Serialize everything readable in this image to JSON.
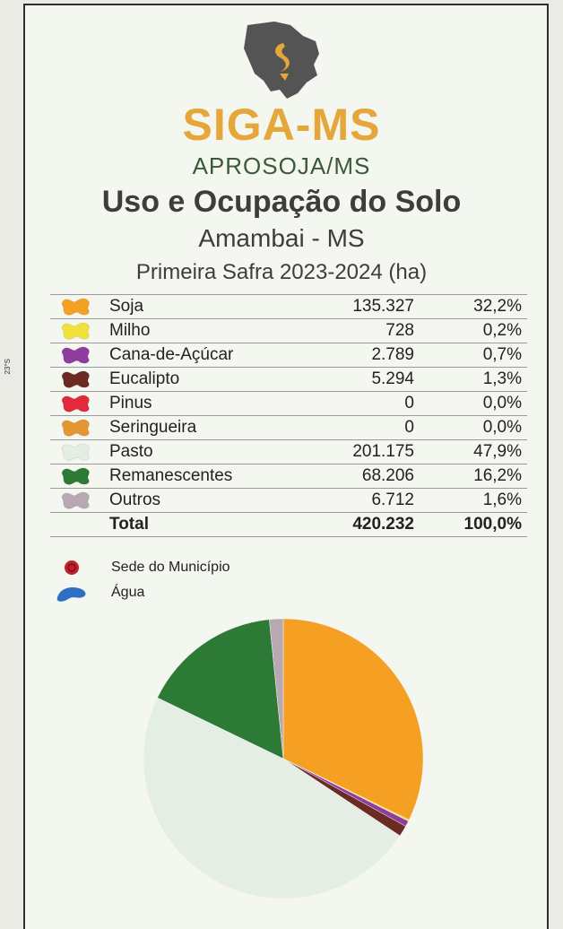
{
  "brand": {
    "name": "SIGA-MS",
    "sub": "APROSOJA/MS"
  },
  "header": {
    "title": "Uso e Ocupação do Solo",
    "location": "Amambai - MS",
    "subtitle": "Primeira Safra 2023-2024 (ha)"
  },
  "map": {
    "lat_tick": "23°S"
  },
  "legend_rows": [
    {
      "label": "Soja",
      "area": "135.327",
      "pct": "32,2%",
      "color": "#f5a023"
    },
    {
      "label": "Milho",
      "area": "728",
      "pct": "0,2%",
      "color": "#f0e23a"
    },
    {
      "label": "Cana-de-Açúcar",
      "area": "2.789",
      "pct": "0,7%",
      "color": "#8e3ca0"
    },
    {
      "label": "Eucalipto",
      "area": "5.294",
      "pct": "1,3%",
      "color": "#6b2a22"
    },
    {
      "label": "Pinus",
      "area": "0",
      "pct": "0,0%",
      "color": "#e22a3a"
    },
    {
      "label": "Seringueira",
      "area": "0",
      "pct": "0,0%",
      "color": "#e59532"
    },
    {
      "label": "Pasto",
      "area": "201.175",
      "pct": "47,9%",
      "color": "#e4eee4"
    },
    {
      "label": "Remanescentes",
      "area": "68.206",
      "pct": "16,2%",
      "color": "#2d7a36"
    },
    {
      "label": "Outros",
      "area": "6.712",
      "pct": "1,6%",
      "color": "#b7a8b2"
    }
  ],
  "total": {
    "label": "Total",
    "area": "420.232",
    "pct": "100,0%"
  },
  "extra_legend": [
    {
      "label": "Sede do Município",
      "icon": "red-circle-icon",
      "color": "#c0212d"
    },
    {
      "label": "Água",
      "icon": "water-blob-icon",
      "color": "#2e6fc2"
    }
  ],
  "chart_data": {
    "type": "pie",
    "unit": "ha",
    "title": "Uso e Ocupação do Solo",
    "subtitle": "Primeira Safra 2023-2024 (ha)",
    "slices": [
      {
        "label": "Soja",
        "value": 135327,
        "percent": 32.2,
        "color": "#f5a023"
      },
      {
        "label": "Milho",
        "value": 728,
        "percent": 0.2,
        "color": "#f0e23a"
      },
      {
        "label": "Cana-de-Açúcar",
        "value": 2789,
        "percent": 0.7,
        "color": "#8e3ca0"
      },
      {
        "label": "Eucalipto",
        "value": 5294,
        "percent": 1.3,
        "color": "#6b2a22"
      },
      {
        "label": "Pinus",
        "value": 0,
        "percent": 0.0,
        "color": "#e22a3a"
      },
      {
        "label": "Seringueira",
        "value": 0,
        "percent": 0.0,
        "color": "#e59532"
      },
      {
        "label": "Pasto",
        "value": 201175,
        "percent": 47.9,
        "color": "#e4eee4"
      },
      {
        "label": "Remanescentes",
        "value": 68206,
        "percent": 16.2,
        "color": "#2d7a36"
      },
      {
        "label": "Outros",
        "value": 6712,
        "percent": 1.6,
        "color": "#b7a8b2"
      }
    ]
  }
}
